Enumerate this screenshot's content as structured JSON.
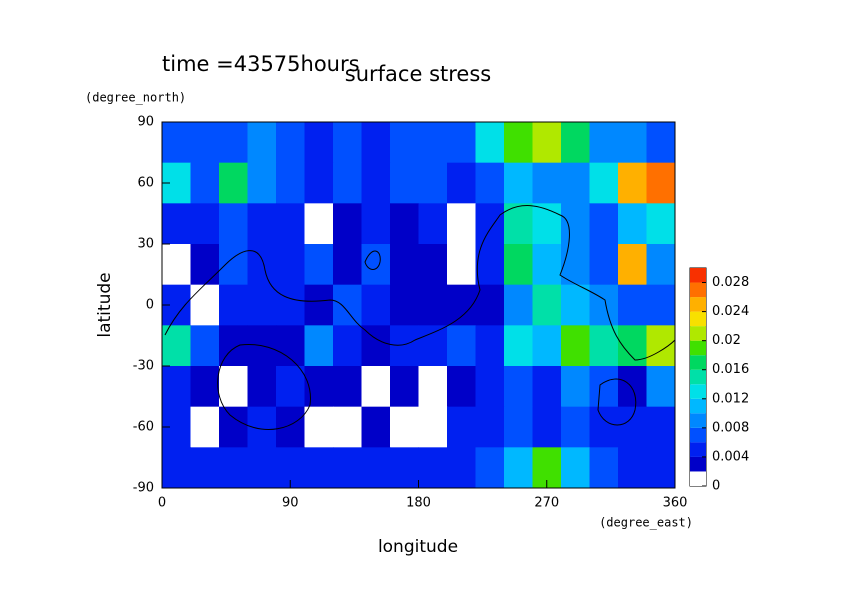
{
  "chart_data": {
    "type": "contour",
    "title": "surface stress",
    "subtitle": "time =43575hours",
    "x_label": "longitude",
    "x_unit": "(degree_east)",
    "y_label": "latitude",
    "y_unit": "(degree_north)",
    "xlim": [
      0,
      360
    ],
    "xticks": [
      0,
      90,
      180,
      270,
      360
    ],
    "ylim": [
      -90,
      90
    ],
    "yticks": [
      -90,
      -60,
      -30,
      0,
      30,
      60,
      90
    ],
    "x": [
      10,
      30,
      50,
      70,
      90,
      110,
      130,
      150,
      170,
      190,
      210,
      230,
      250,
      270,
      290,
      310,
      330,
      350
    ],
    "y": [
      80,
      60,
      40,
      20,
      0,
      -20,
      -40,
      -60,
      -80
    ],
    "z": [
      [
        0.006,
        0.007,
        0.006,
        0.008,
        0.006,
        0.005,
        0.006,
        0.005,
        0.006,
        0.006,
        0.006,
        0.012,
        0.018,
        0.02,
        0.016,
        0.008,
        0.008,
        0.006
      ],
      [
        0.012,
        0.006,
        0.016,
        0.008,
        0.006,
        0.005,
        0.007,
        0.004,
        0.007,
        0.006,
        0.005,
        0.006,
        0.01,
        0.008,
        0.008,
        0.012,
        0.024,
        0.026
      ],
      [
        0.004,
        0.004,
        0.006,
        0.004,
        0.004,
        0.001,
        0.003,
        0.005,
        0.003,
        0.004,
        0.001,
        0.004,
        0.014,
        0.012,
        0.008,
        0.006,
        0.01,
        0.012
      ],
      [
        0.001,
        0.003,
        0.006,
        0.004,
        0.005,
        0.006,
        0.003,
        0.006,
        0.002,
        0.003,
        0.001,
        0.004,
        0.016,
        0.01,
        0.008,
        0.006,
        0.024,
        0.008
      ],
      [
        0.004,
        0.001,
        0.004,
        0.005,
        0.004,
        0.003,
        0.006,
        0.004,
        0.002,
        0.003,
        0.003,
        0.002,
        0.008,
        0.014,
        0.01,
        0.008,
        0.006,
        0.006
      ],
      [
        0.014,
        0.006,
        0.003,
        0.002,
        0.003,
        0.008,
        0.004,
        0.002,
        0.004,
        0.004,
        0.006,
        0.004,
        0.012,
        0.01,
        0.018,
        0.014,
        0.016,
        0.02
      ],
      [
        0.004,
        0.003,
        0.001,
        0.002,
        0.004,
        0.003,
        0.002,
        0.001,
        0.002,
        0.001,
        0.003,
        0.004,
        0.006,
        0.004,
        0.008,
        0.006,
        0.003,
        0.008
      ],
      [
        0.004,
        0.001,
        0.003,
        0.004,
        0.002,
        0.001,
        0.001,
        0.002,
        0.001,
        0.001,
        0.004,
        0.004,
        0.006,
        0.004,
        0.006,
        0.004,
        0.004,
        0.004
      ],
      [
        0.004,
        0.005,
        0.004,
        0.004,
        0.005,
        0.004,
        0.005,
        0.004,
        0.004,
        0.004,
        0.005,
        0.006,
        0.01,
        0.018,
        0.01,
        0.006,
        0.004,
        0.004
      ]
    ],
    "levels": [
      0,
      0.002,
      0.004,
      0.006,
      0.008,
      0.01,
      0.012,
      0.014,
      0.016,
      0.018,
      0.02,
      0.022,
      0.024,
      0.026,
      0.028,
      0.03
    ],
    "colors": [
      "#ffffff",
      "#0000c8",
      "#0020f0",
      "#0050ff",
      "#0088ff",
      "#00b8ff",
      "#00e0e8",
      "#00e0a8",
      "#00d860",
      "#40e000",
      "#b0e800",
      "#f8e000",
      "#ffb000",
      "#ff7000",
      "#f83000"
    ],
    "colorbar_ticks": [
      0,
      0.004,
      0.008,
      0.012,
      0.016,
      0.02,
      0.024,
      0.028
    ]
  }
}
